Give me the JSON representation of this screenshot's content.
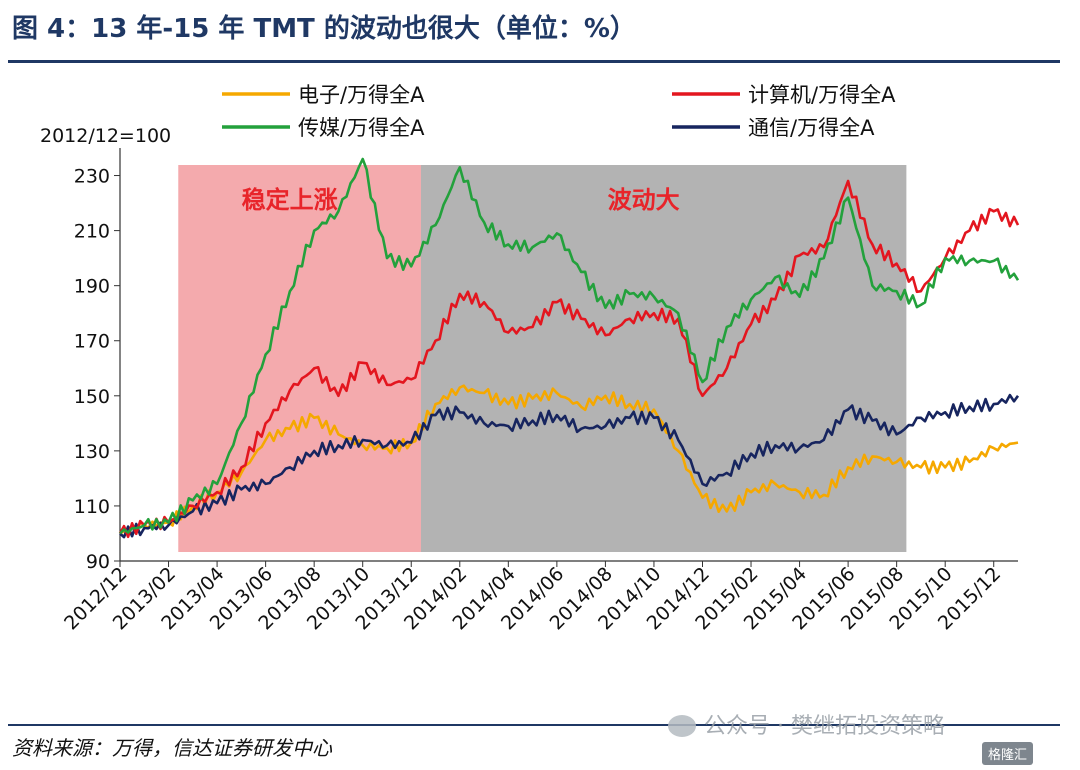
{
  "title": "图 4：13 年-15 年 TMT 的波动也很大（单位：%）",
  "source": "资料来源：万得，信达证券研发中心",
  "watermark": "公众号 · 樊继拓投资策略",
  "corner_logo": "格隆汇",
  "chart_data": {
    "type": "line",
    "base_note": "2012/12=100",
    "ylim": [
      90,
      240
    ],
    "y_ticks": [
      90,
      110,
      130,
      150,
      170,
      190,
      210,
      230
    ],
    "x_ticks": [
      "2012/12",
      "2013/02",
      "2013/04",
      "2013/06",
      "2013/08",
      "2013/10",
      "2013/12",
      "2014/02",
      "2014/04",
      "2014/06",
      "2014/08",
      "2014/10",
      "2014/12",
      "2015/02",
      "2015/04",
      "2015/06",
      "2015/08",
      "2015/10",
      "2015/12"
    ],
    "x_start": "2012/12",
    "x_end": "2016/01",
    "bands": [
      {
        "label": "稳定上涨",
        "from": "2013/01",
        "to": "2013/11",
        "color": "#f4aaad"
      },
      {
        "label": "波动大",
        "from": "2013/11",
        "to": "2015/07",
        "color": "#b3b3b3"
      }
    ],
    "legend": [
      {
        "name": "电子/万得全A",
        "color": "#f5a800"
      },
      {
        "name": "计算机/万得全A",
        "color": "#e3161f"
      },
      {
        "name": "传媒/万得全A",
        "color": "#23a13c"
      },
      {
        "name": "通信/万得全A",
        "color": "#17255f"
      }
    ],
    "x": [
      "2012/12",
      "2013/01",
      "2013/02",
      "2013/03",
      "2013/04",
      "2013/05",
      "2013/06",
      "2013/07",
      "2013/08",
      "2013/09",
      "2013/10",
      "2013/11",
      "2013/12",
      "2014/01",
      "2014/02",
      "2014/03",
      "2014/04",
      "2014/05",
      "2014/06",
      "2014/07",
      "2014/08",
      "2014/09",
      "2014/10",
      "2014/11",
      "2014/12",
      "2015/01",
      "2015/02",
      "2015/03",
      "2015/04",
      "2015/05",
      "2015/06",
      "2015/07",
      "2015/08",
      "2015/09",
      "2015/10",
      "2015/11",
      "2015/12",
      "2016/01"
    ],
    "series": [
      {
        "name": "电子/万得全A",
        "color": "#f5a800",
        "values": [
          100,
          103,
          104,
          110,
          115,
          122,
          134,
          138,
          142,
          136,
          132,
          131,
          133,
          147,
          153,
          151,
          147,
          149,
          151,
          146,
          150,
          147,
          145,
          130,
          113,
          108,
          115,
          118,
          115,
          114,
          124,
          128,
          126,
          124,
          124,
          126,
          131,
          133
        ]
      },
      {
        "name": "计算机/万得全A",
        "color": "#e3161f",
        "values": [
          100,
          103,
          104,
          110,
          115,
          124,
          140,
          152,
          160,
          150,
          162,
          154,
          156,
          170,
          187,
          184,
          173,
          175,
          184,
          178,
          172,
          178,
          180,
          178,
          150,
          160,
          176,
          185,
          201,
          204,
          228,
          205,
          198,
          188,
          200,
          210,
          217,
          212
        ]
      },
      {
        "name": "传媒/万得全A",
        "color": "#23a13c",
        "values": [
          100,
          103,
          104,
          112,
          118,
          140,
          165,
          188,
          210,
          217,
          236,
          200,
          197,
          212,
          233,
          213,
          205,
          204,
          209,
          195,
          182,
          187,
          186,
          180,
          155,
          175,
          185,
          193,
          186,
          200,
          222,
          190,
          188,
          183,
          200,
          199,
          199,
          192
        ]
      },
      {
        "name": "通信/万得全A",
        "color": "#17255f",
        "values": [
          100,
          102,
          103,
          108,
          111,
          116,
          118,
          124,
          130,
          132,
          134,
          132,
          133,
          143,
          144,
          140,
          139,
          141,
          143,
          138,
          139,
          142,
          142,
          134,
          118,
          122,
          129,
          132,
          131,
          134,
          145,
          141,
          136,
          142,
          144,
          146,
          147,
          150
        ]
      }
    ]
  }
}
